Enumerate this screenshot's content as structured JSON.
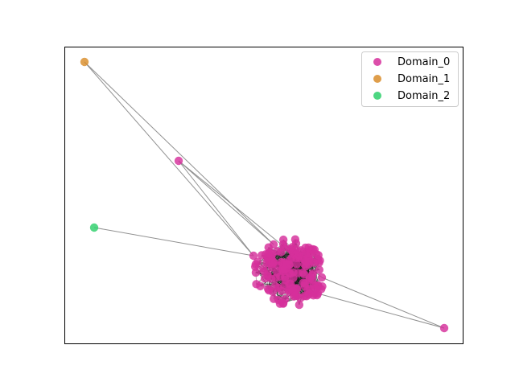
{
  "legend": {
    "placement": "top-right",
    "entries": [
      {
        "label": "Domain_0",
        "color": "#d62f9b"
      },
      {
        "label": "Domain_1",
        "color": "#d98d2b"
      },
      {
        "label": "Domain_2",
        "color": "#2ecf6b"
      }
    ]
  },
  "graph": {
    "edge_color": "#8a8a8a",
    "node_count_cluster": 150,
    "outliers": [
      {
        "id": "o1",
        "domain": 1
      },
      {
        "id": "o2",
        "domain": 0
      },
      {
        "id": "o3",
        "domain": 2
      },
      {
        "id": "o4",
        "domain": 0
      }
    ]
  }
}
